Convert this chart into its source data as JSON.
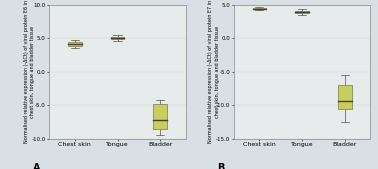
{
  "panel_A": {
    "label": "A",
    "ylim": [
      -10,
      10
    ],
    "yticks": [
      -10.0,
      -5.0,
      0.0,
      5.0,
      10.0
    ],
    "ytick_labels": [
      "-10.0",
      "-5.0",
      "0.0",
      "5.0",
      "10.0"
    ],
    "ylabel": "Normalised relative expression (-ΔCt) of viral protein E6 in\nchest skin, tongue and bladder tissue",
    "categories": [
      "Chest skin",
      "Tongue",
      "Bladder"
    ],
    "boxes": [
      {
        "med": 4.1,
        "q1": 3.8,
        "q3": 4.4,
        "whislo": 3.5,
        "whishi": 4.7,
        "fliers": []
      },
      {
        "med": 5.05,
        "q1": 4.85,
        "q3": 5.2,
        "whislo": 4.55,
        "whishi": 5.55,
        "fliers": []
      },
      {
        "med": -7.2,
        "q1": -8.5,
        "q3": -4.8,
        "whislo": -9.5,
        "whishi": -4.2,
        "fliers": []
      }
    ],
    "box_color": "#c8cf5e",
    "median_color": "#444422",
    "whisker_color": "#555544",
    "edge_color": "#777755"
  },
  "panel_B": {
    "label": "B",
    "ylim": [
      -15,
      5
    ],
    "yticks": [
      -15.0,
      -10.0,
      -5.0,
      0.0,
      5.0
    ],
    "ytick_labels": [
      "-15.0",
      "-10.0",
      "-5.0",
      "0.0",
      "5.0"
    ],
    "ylabel": "Normalised relative expression (-ΔCt) of viral protein E7 in\nchest skin, tongue and bladder tissue",
    "categories": [
      "Chest skin",
      "Tongue",
      "Bladder"
    ],
    "boxes": [
      {
        "med": 4.45,
        "q1": 4.35,
        "q3": 4.6,
        "whislo": 4.25,
        "whishi": 4.7,
        "fliers": []
      },
      {
        "med": 3.9,
        "q1": 3.75,
        "q3": 4.05,
        "whislo": 3.45,
        "whishi": 4.35,
        "fliers": []
      },
      {
        "med": -9.3,
        "q1": -10.5,
        "q3": -7.0,
        "whislo": -12.5,
        "whishi": -5.5,
        "fliers": []
      }
    ],
    "box_color": "#c8cf5e",
    "median_color": "#444422",
    "whisker_color": "#555544",
    "edge_color": "#777755"
  },
  "outer_bg": "#d8e0e5",
  "plot_bg": "#e8ebec",
  "label_fontsize": 7,
  "tick_fontsize": 4.0,
  "ylabel_fontsize": 3.5,
  "xtick_fontsize": 4.5
}
